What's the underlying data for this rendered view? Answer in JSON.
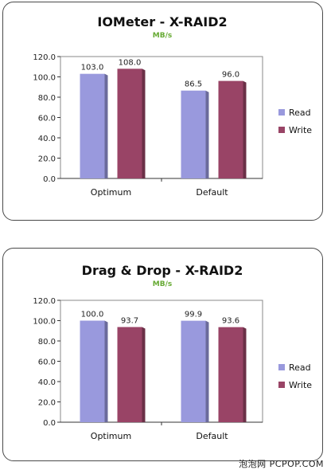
{
  "chart_data": [
    {
      "type": "bar",
      "title": "IOMeter - X-RAID2",
      "subtitle": "MB/s",
      "categories": [
        "Optimum",
        "Default"
      ],
      "series": [
        {
          "name": "Read",
          "values": [
            103.0,
            86.5
          ],
          "labels": [
            "103.0",
            "86.5"
          ],
          "color": "#9999dd"
        },
        {
          "name": "Write",
          "values": [
            108.0,
            96.0
          ],
          "labels": [
            "108.0",
            "96.0"
          ],
          "color": "#994466"
        }
      ],
      "ylim": [
        0,
        120
      ],
      "yticks": [
        "0.0",
        "20.0",
        "40.0",
        "60.0",
        "80.0",
        "100.0",
        "120.0"
      ],
      "grid": false,
      "legend": "right"
    },
    {
      "type": "bar",
      "title": "Drag & Drop - X-RAID2",
      "subtitle": "MB/s",
      "categories": [
        "Optimum",
        "Default"
      ],
      "series": [
        {
          "name": "Read",
          "values": [
            100.0,
            99.9
          ],
          "labels": [
            "100.0",
            "99.9"
          ],
          "color": "#9999dd"
        },
        {
          "name": "Write",
          "values": [
            93.7,
            93.6
          ],
          "labels": [
            "93.7",
            "93.6"
          ],
          "color": "#994466"
        }
      ],
      "ylim": [
        0,
        120
      ],
      "yticks": [
        "0.0",
        "20.0",
        "40.0",
        "60.0",
        "80.0",
        "100.0",
        "120.0"
      ],
      "grid": false,
      "legend": "right"
    }
  ],
  "colors": {
    "title": "#111111",
    "subtitle": "#66aa33",
    "plot_border": "#888888",
    "axis": "#333333"
  },
  "watermark": "泡泡网 PCPOP.COM"
}
